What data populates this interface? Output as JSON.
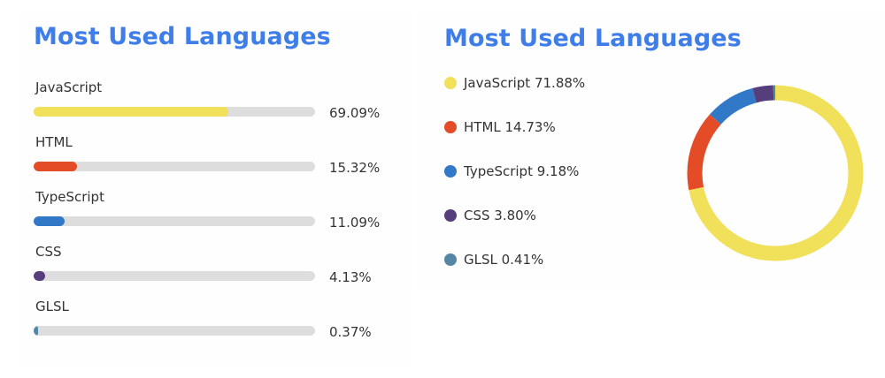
{
  "bar_card": {
    "title": "Most Used Languages"
  },
  "donut_card": {
    "title": "Most Used Languages"
  },
  "chart_data": [
    {
      "type": "bar",
      "title": "Most Used Languages",
      "categories": [
        "JavaScript",
        "HTML",
        "TypeScript",
        "CSS",
        "GLSL"
      ],
      "values": [
        69.09,
        15.32,
        11.09,
        4.13,
        0.37
      ],
      "labels": [
        "69.09%",
        "15.32%",
        "11.09%",
        "4.13%",
        "0.37%"
      ],
      "colors": [
        "#f1e05a",
        "#e34c26",
        "#3178c6",
        "#563d7c",
        "#5686a5"
      ],
      "track_color": "#dddddd",
      "ylim": [
        0,
        100
      ]
    },
    {
      "type": "pie",
      "style": "donut",
      "title": "Most Used Languages",
      "categories": [
        "JavaScript",
        "HTML",
        "TypeScript",
        "CSS",
        "GLSL"
      ],
      "values": [
        71.88,
        14.73,
        9.18,
        3.8,
        0.41
      ],
      "labels": [
        "JavaScript 71.88%",
        "HTML 14.73%",
        "TypeScript 9.18%",
        "CSS 3.80%",
        "GLSL 0.41%"
      ],
      "colors": [
        "#f1e05a",
        "#e34c26",
        "#3178c6",
        "#563d7c",
        "#5686a5"
      ],
      "legend": "left"
    }
  ]
}
